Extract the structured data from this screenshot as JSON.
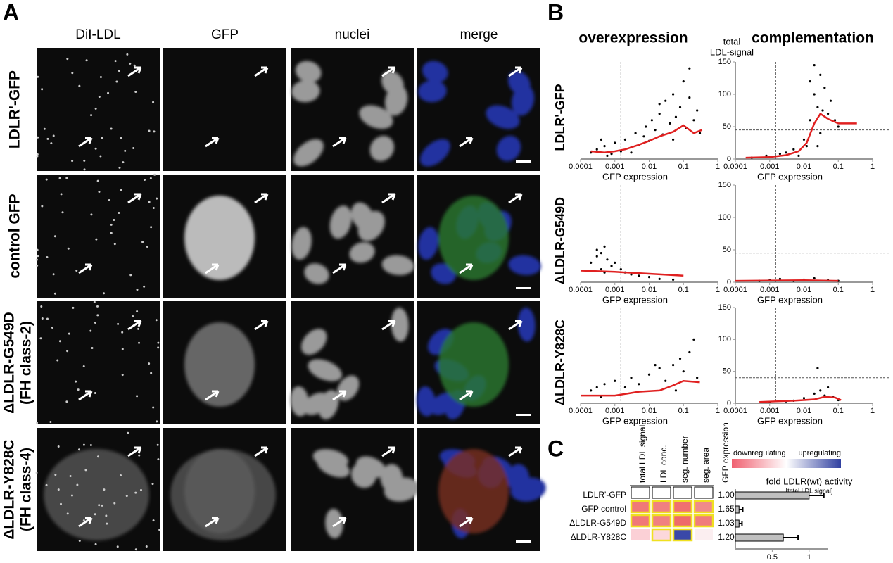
{
  "panel_labels": [
    "A",
    "B",
    "C"
  ],
  "panel_a": {
    "columns": [
      "DiI-LDL",
      "GFP",
      "nuclei",
      "merge"
    ],
    "rows": [
      [
        "LDLR'-GFP"
      ],
      [
        "control GFP"
      ],
      [
        "ΔLDLR-G549D",
        "(FH class-2)"
      ],
      [
        "ΔLDLR-Y828C",
        "(FH class-4)"
      ]
    ]
  },
  "panel_b": {
    "headers": [
      "overexpression",
      "complementation"
    ],
    "y_title": [
      "total",
      "LDL-signal"
    ],
    "rows": [
      "LDLR'-GFP",
      "ΔLDLR-G549D",
      "ΔLDLR-Y828C"
    ]
  },
  "chart_data": [
    {
      "type": "scatter",
      "xlabel": "GFP expression",
      "log_x": true,
      "xlim": [
        0.0001,
        1
      ],
      "xticks": [
        0.0001,
        0.001,
        0.01,
        0.1,
        1
      ],
      "ylim": [
        0,
        150
      ],
      "vline": 0.0015,
      "points": {
        "color": "#000000",
        "x": [
          0.0002,
          0.0003,
          0.0005,
          0.0008,
          0.001,
          0.0015,
          0.002,
          0.003,
          0.004,
          0.005,
          0.007,
          0.008,
          0.01,
          0.012,
          0.015,
          0.02,
          0.025,
          0.03,
          0.04,
          0.05,
          0.06,
          0.08,
          0.1,
          0.12,
          0.15,
          0.2,
          0.25,
          0.3,
          0.0004,
          0.0006,
          0.003,
          0.02,
          0.05,
          0.15
        ],
        "y": [
          10,
          15,
          20,
          8,
          25,
          12,
          30,
          18,
          40,
          22,
          35,
          50,
          28,
          60,
          45,
          70,
          38,
          90,
          55,
          100,
          65,
          80,
          120,
          48,
          140,
          60,
          75,
          40,
          30,
          5,
          10,
          85,
          30,
          95
        ]
      },
      "trend": {
        "color": "#e02020",
        "x": [
          0.0002,
          0.0005,
          0.001,
          0.002,
          0.005,
          0.01,
          0.02,
          0.05,
          0.1,
          0.2,
          0.35
        ],
        "y": [
          12,
          10,
          12,
          15,
          22,
          28,
          35,
          42,
          52,
          40,
          45
        ]
      }
    },
    {
      "type": "scatter",
      "xlabel": "GFP expression",
      "log_x": true,
      "xlim": [
        0.0001,
        1
      ],
      "xticks": [
        0.0001,
        0.001,
        0.01,
        0.1,
        1
      ],
      "ylim": [
        0,
        150
      ],
      "yticks": [
        0,
        50,
        100,
        150
      ],
      "vline": 0.0015,
      "hline": 45,
      "points": {
        "color": "#000000",
        "x": [
          0.0003,
          0.0008,
          0.001,
          0.002,
          0.003,
          0.005,
          0.007,
          0.01,
          0.012,
          0.015,
          0.02,
          0.02,
          0.025,
          0.03,
          0.03,
          0.04,
          0.05,
          0.06,
          0.08,
          0.1,
          0.015,
          0.025,
          0.035
        ],
        "y": [
          2,
          5,
          3,
          8,
          10,
          15,
          5,
          30,
          20,
          60,
          100,
          145,
          80,
          130,
          40,
          110,
          70,
          90,
          60,
          50,
          120,
          20,
          75
        ]
      },
      "trend": {
        "color": "#e02020",
        "x": [
          0.0002,
          0.001,
          0.003,
          0.007,
          0.012,
          0.02,
          0.03,
          0.05,
          0.1,
          0.35
        ],
        "y": [
          2,
          3,
          6,
          12,
          25,
          55,
          70,
          62,
          55,
          55
        ]
      }
    },
    {
      "type": "scatter",
      "xlabel": "GFP expression",
      "log_x": true,
      "xlim": [
        0.0001,
        1
      ],
      "xticks": [
        0.0001,
        0.001,
        0.01,
        0.1,
        1
      ],
      "ylim": [
        0,
        150
      ],
      "vline": 0.0015,
      "points": {
        "color": "#000000",
        "x": [
          0.0002,
          0.0003,
          0.0004,
          0.0005,
          0.0006,
          0.0008,
          0.001,
          0.0015,
          0.002,
          0.003,
          0.005,
          0.01,
          0.02,
          0.05,
          0.0004,
          0.0005,
          0.0003
        ],
        "y": [
          30,
          40,
          45,
          55,
          35,
          25,
          30,
          20,
          15,
          12,
          10,
          8,
          5,
          4,
          20,
          15,
          50
        ]
      },
      "trend": {
        "color": "#e02020",
        "x": [
          0.0001,
          0.001,
          0.01,
          0.1
        ],
        "y": [
          18,
          16,
          13,
          10
        ]
      }
    },
    {
      "type": "scatter",
      "xlabel": "GFP expression",
      "log_x": true,
      "xlim": [
        0.0001,
        1
      ],
      "xticks": [
        0.0001,
        0.001,
        0.01,
        0.1,
        1
      ],
      "ylim": [
        0,
        150
      ],
      "yticks": [
        0,
        50,
        100,
        150
      ],
      "vline": 0.0015,
      "hline": 45,
      "points": {
        "color": "#000000",
        "x": [
          0.0005,
          0.001,
          0.002,
          0.005,
          0.01,
          0.02,
          0.05,
          0.1
        ],
        "y": [
          2,
          3,
          5,
          2,
          4,
          6,
          3,
          2
        ]
      },
      "trend": {
        "color": "#e02020",
        "x": [
          0.0001,
          0.01,
          0.1
        ],
        "y": [
          2,
          3,
          2
        ]
      }
    },
    {
      "type": "scatter",
      "xlabel": "GFP expression",
      "log_x": true,
      "xlim": [
        0.0001,
        1
      ],
      "xticks": [
        0.0001,
        0.001,
        0.01,
        0.1,
        1
      ],
      "ylim": [
        0,
        150
      ],
      "vline": 0.0015,
      "points": {
        "color": "#000000",
        "x": [
          0.0002,
          0.0003,
          0.0005,
          0.001,
          0.002,
          0.003,
          0.005,
          0.01,
          0.02,
          0.03,
          0.05,
          0.08,
          0.1,
          0.15,
          0.2,
          0.25,
          0.0004,
          0.015,
          0.06
        ],
        "y": [
          20,
          25,
          30,
          35,
          25,
          40,
          30,
          45,
          55,
          35,
          60,
          70,
          50,
          80,
          100,
          40,
          10,
          60,
          20
        ]
      },
      "trend": {
        "color": "#e02020",
        "x": [
          0.0001,
          0.001,
          0.005,
          0.02,
          0.05,
          0.1,
          0.3
        ],
        "y": [
          12,
          12,
          18,
          20,
          28,
          35,
          33
        ]
      }
    },
    {
      "type": "scatter",
      "xlabel": "GFP expression",
      "log_x": true,
      "xlim": [
        0.0001,
        1
      ],
      "xticks": [
        0.0001,
        0.001,
        0.01,
        0.1,
        1
      ],
      "ylim": [
        0,
        150
      ],
      "yticks": [
        0,
        50,
        100,
        150
      ],
      "vline": 0.0015,
      "hline": 40,
      "points": {
        "color": "#000000",
        "x": [
          0.001,
          0.003,
          0.005,
          0.01,
          0.02,
          0.03,
          0.04,
          0.05,
          0.07,
          0.1,
          0.025
        ],
        "y": [
          2,
          3,
          4,
          8,
          15,
          20,
          12,
          25,
          10,
          5,
          55
        ]
      },
      "trend": {
        "color": "#e02020",
        "x": [
          0.0005,
          0.005,
          0.02,
          0.04,
          0.08,
          0.12
        ],
        "y": [
          2,
          4,
          6,
          10,
          9,
          5
        ]
      }
    },
    {
      "type": "heatmap",
      "legend_low": "downregulating",
      "legend_high": "upregulating",
      "gradient": [
        "#f06070",
        "#ffffff",
        "#3040a0"
      ],
      "columns": [
        "total LDL signal",
        "LDL conc.",
        "seg. number",
        "seg. area"
      ],
      "rows": [
        "LDLR'-GFP",
        "GFP control",
        "ΔLDLR-G549D",
        "ΔLDLR-Y828C"
      ],
      "colors": [
        [
          "#ffffff",
          "#ffffff",
          "#ffffff",
          "#ffffff"
        ],
        [
          "#f07878",
          "#f08080",
          "#f07070",
          "#f08a8a"
        ],
        [
          "#f07878",
          "#f08080",
          "#ee6a6a",
          "#f07c7c"
        ],
        [
          "#fbd0d6",
          "#fcd8dc",
          "#3a48a8",
          "#fbeef0"
        ]
      ],
      "highlight": [
        [
          false,
          false,
          false,
          false
        ],
        [
          true,
          true,
          true,
          true
        ],
        [
          true,
          true,
          true,
          true
        ],
        [
          false,
          true,
          true,
          false
        ]
      ],
      "value_title": "GFP expression",
      "values": [
        1,
        1.65,
        1.03,
        1.2
      ],
      "value_labels": [
        "1.00",
        "1.65",
        "1.03",
        "1.20"
      ]
    },
    {
      "type": "bar",
      "orientation": "horizontal",
      "title": "fold LDLR(wt) activity",
      "subtitle": "[total LDL signal]",
      "color": "#c0c0c0",
      "values": [
        1,
        0.05,
        0.05,
        0.65
      ],
      "errors": [
        0.2,
        0.05,
        0.04,
        0.2
      ],
      "xlim": [
        0,
        1.25
      ],
      "xticks": [
        0.5,
        1
      ]
    }
  ]
}
